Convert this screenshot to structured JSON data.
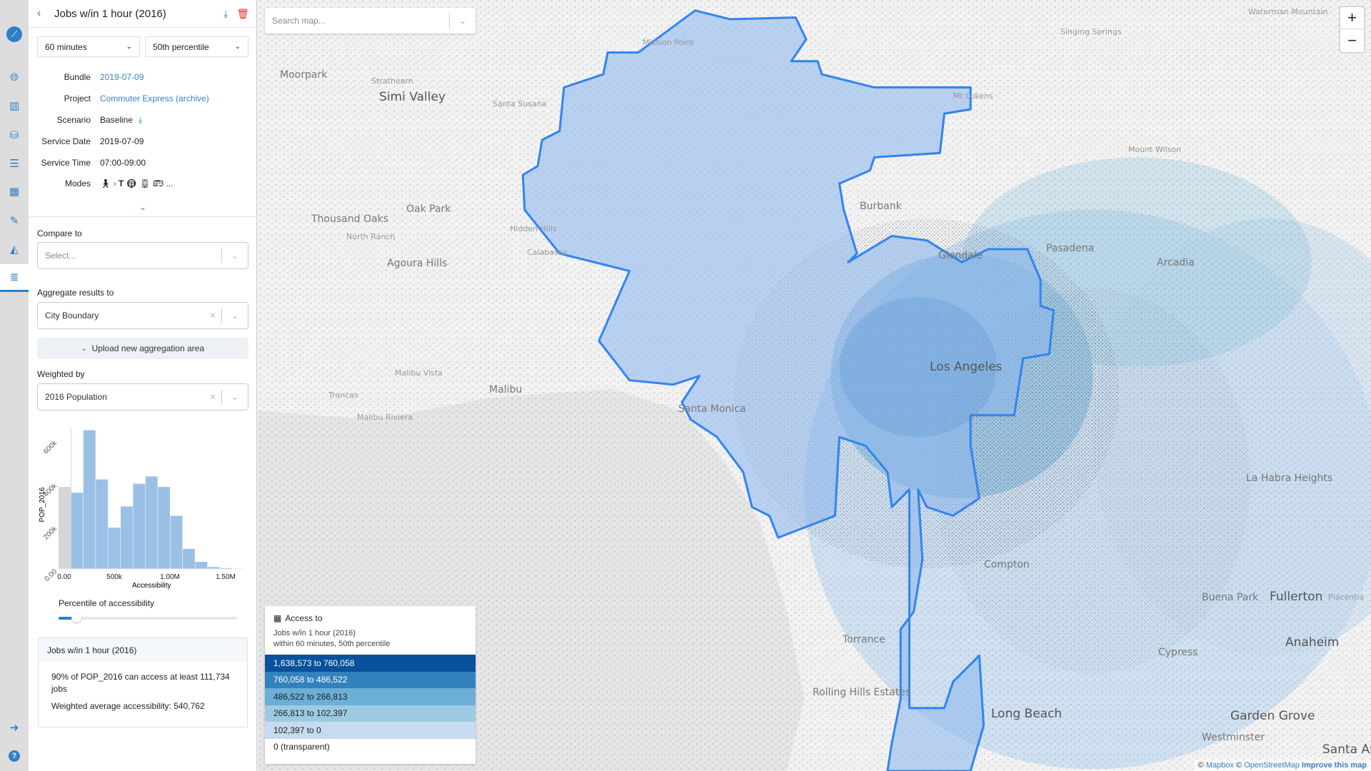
{
  "header": {
    "title": "Jobs w/in 1 hour (2016)"
  },
  "controls": {
    "time": "60 minutes",
    "percentile": "50th percentile"
  },
  "info": [
    {
      "label": "Bundle",
      "value": "2019-07-09",
      "link": true
    },
    {
      "label": "Project",
      "value": "Commuter Express (archive)",
      "link": true
    },
    {
      "label": "Scenario",
      "value": "Baseline",
      "link": false
    },
    {
      "label": "Service Date",
      "value": "2019-07-09",
      "link": false
    },
    {
      "label": "Service Time",
      "value": "07:00-09:00",
      "link": false
    },
    {
      "label": "Modes",
      "value": "",
      "link": false
    }
  ],
  "modes": {
    "icons": [
      "walk-icon",
      "chevron-right-icon",
      "tram-icon",
      "subway-icon",
      "rail-icon",
      "bus-icon"
    ],
    "tram_letter": "T",
    "more": "..."
  },
  "compare": {
    "label": "Compare to",
    "placeholder": "Select..."
  },
  "aggregate": {
    "label": "Aggregate results to",
    "value": "City Boundary",
    "upload_label": "Upload new aggregation area"
  },
  "weighted": {
    "label": "Weighted by",
    "value": "2016 Population"
  },
  "chart_data": {
    "type": "bar",
    "xlabel": "Accessibility",
    "ylabel": "POP_2016",
    "xticks": [
      "0.00",
      "500k",
      "1.00M",
      "1.50M"
    ],
    "yticks": [
      "0.00",
      "200k",
      "400k",
      "600k"
    ],
    "bin_width": 111500,
    "values": [
      383000,
      356000,
      648000,
      418000,
      193000,
      292000,
      398000,
      432000,
      383000,
      248000,
      94000,
      33000,
      9000,
      4000,
      1000
    ],
    "highlight_bins_below_percentile": [
      0
    ],
    "colors": {
      "bar": "#9bc0e6",
      "below": "#d5d5d5"
    },
    "ylim": [
      0,
      650000
    ],
    "xlim": [
      0,
      1670000
    ]
  },
  "percentile": {
    "label": "Percentile of accessibility",
    "value": 10
  },
  "summary": {
    "title": "Jobs w/in 1 hour (2016)",
    "line1": "90% of POP_2016 can access at least 111,734 jobs",
    "line2": "Weighted average accessibility: 540,762"
  },
  "legend": {
    "title": "Access to",
    "subtitle1": "Jobs w/in 1 hour (2016)",
    "subtitle2": "within 60 minutes, 50th percentile",
    "rows": [
      {
        "label": "1,638,573 to 760,058",
        "color": "#08519c",
        "text": "#fff"
      },
      {
        "label": "760,058 to 486,522",
        "color": "#3182bd",
        "text": "#fff"
      },
      {
        "label": "486,522 to 266,813",
        "color": "#6baed6",
        "text": "#222"
      },
      {
        "label": "266,813 to 102,397",
        "color": "#9ecae1",
        "text": "#222"
      },
      {
        "label": "102,397 to 0",
        "color": "#c6dbef",
        "text": "#222"
      },
      {
        "label": "0 (transparent)",
        "color": "#ffffff",
        "text": "#222"
      }
    ]
  },
  "map": {
    "search_placeholder": "Search map...",
    "zoom_in": "+",
    "zoom_out": "−",
    "attribution": {
      "c1": "© ",
      "mapbox": "Mapbox",
      "c2": " © ",
      "osm": "OpenStreetMap",
      "improve": "Improve this map"
    },
    "labels": [
      "Waterman Mountain",
      "Singing Springs",
      "Mission Point",
      "Moorpark",
      "Simi Valley",
      "Santa Susana",
      "Strathearn",
      "Thousand Oaks",
      "Oak Park",
      "North Ranch",
      "Hidden Hills",
      "Calabasas",
      "Agoura Hills",
      "Malibu",
      "Malibu Vista",
      "Trancas",
      "Malibu Riviera",
      "Santa Monica",
      "Los Angeles",
      "Burbank",
      "Glendale",
      "Pasadena",
      "Arcadia",
      "Mount Wilson",
      "Compton",
      "Torrance",
      "Rolling Hills Estates",
      "Long Beach",
      "Buena Park",
      "Fullerton",
      "Anaheim",
      "Cypress",
      "Garden Grove",
      "Westminster",
      "Santa Ana",
      "La Habra Heights",
      "Placentia",
      "Mt Lukens"
    ],
    "boundary_color": "#3385f0"
  }
}
